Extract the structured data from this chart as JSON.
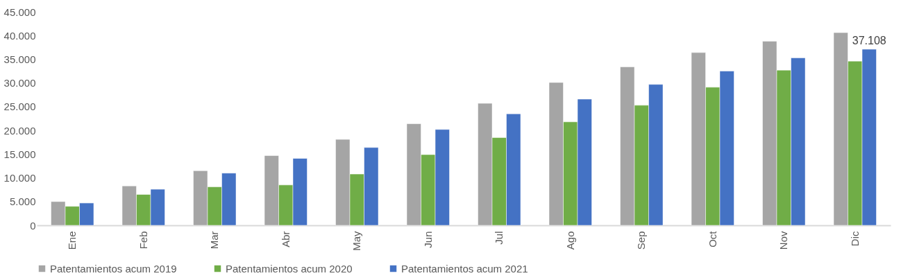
{
  "chart_data": {
    "type": "bar",
    "categories": [
      "Ene",
      "Feb",
      "Mar",
      "Abr",
      "May",
      "Jun",
      "Jul",
      "Ago",
      "Sep",
      "Oct",
      "Nov",
      "Dic"
    ],
    "series": [
      {
        "name": "Patentamientos acum 2019",
        "color": "#a5a5a5",
        "values": [
          5000,
          8300,
          11500,
          14700,
          18100,
          21400,
          25700,
          30100,
          33400,
          36400,
          38800,
          40600
        ]
      },
      {
        "name": "Patentamientos acum 2020",
        "color": "#70ad47",
        "values": [
          4000,
          6500,
          8100,
          8500,
          10800,
          14900,
          18500,
          21800,
          25300,
          29100,
          32700,
          34600
        ]
      },
      {
        "name": "Patentamientos acum 2021",
        "color": "#4472c4",
        "values": [
          4700,
          7600,
          11000,
          14100,
          16400,
          20200,
          23500,
          26600,
          29700,
          32500,
          35300,
          37108
        ],
        "value_labels": [
          null,
          null,
          null,
          null,
          null,
          null,
          null,
          null,
          null,
          null,
          null,
          "37.108"
        ]
      }
    ],
    "ylim": [
      0,
      45000
    ],
    "yticks": [
      {
        "value": 0,
        "label": "0"
      },
      {
        "value": 5000,
        "label": "5.000"
      },
      {
        "value": 10000,
        "label": "10.000"
      },
      {
        "value": 15000,
        "label": "15.000"
      },
      {
        "value": 20000,
        "label": "20.000"
      },
      {
        "value": 25000,
        "label": "25.000"
      },
      {
        "value": 30000,
        "label": "30.000"
      },
      {
        "value": 35000,
        "label": "35.000"
      },
      {
        "value": 40000,
        "label": "40.000"
      },
      {
        "value": 45000,
        "label": "45.000"
      }
    ],
    "grid": false,
    "legend": "bottom"
  }
}
